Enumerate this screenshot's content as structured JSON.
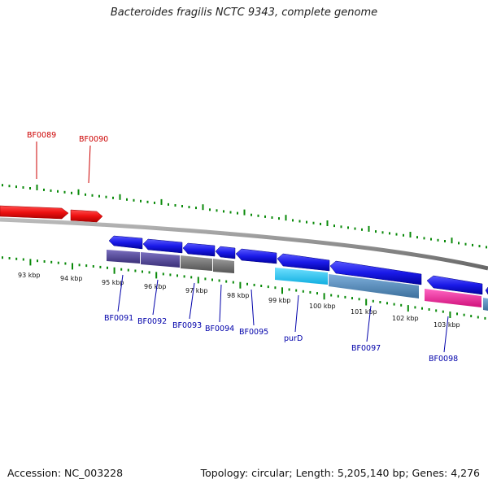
{
  "title": "Bacteroides fragilis NCTC 9343, complete genome",
  "footer": {
    "accession": "Accession: NC_003228",
    "stats": "Topology: circular; Length: 5,205,140 bp; Genes: 4,276"
  },
  "kbp_ticks": [
    "93 kbp",
    "94 kbp",
    "95 kbp",
    "96 kbp",
    "97 kbp",
    "98 kbp",
    "99 kbp",
    "100 kbp",
    "101 kbp",
    "102 kbp",
    "103 kbp"
  ],
  "genes_top": [
    {
      "label": "BF0089",
      "color": "#cc0000"
    },
    {
      "label": "BF0090",
      "color": "#cc0000"
    }
  ],
  "genes_bottom": [
    {
      "label": "BF0091",
      "color": "#0000aa"
    },
    {
      "label": "BF0092",
      "color": "#0000aa"
    },
    {
      "label": "BF0093",
      "color": "#0000aa"
    },
    {
      "label": "BF0094",
      "color": "#0000aa"
    },
    {
      "label": "BF0095",
      "color": "#0000aa"
    },
    {
      "label": "purD",
      "color": "#0000aa"
    },
    {
      "label": "BF0097",
      "color": "#0000aa"
    },
    {
      "label": "BF0098",
      "color": "#0000aa"
    }
  ],
  "colors": {
    "forward_cds": "#ee1111",
    "reverse_cds": "#1515e6",
    "backbone": "#888888",
    "tick": "#0a8a0a",
    "cog_purple": "#4a3f8f",
    "cog_gray": "#6f6f6f",
    "cog_cyan": "#22c4f0",
    "cog_steel": "#4f86b8",
    "cog_magenta": "#ee2299"
  }
}
